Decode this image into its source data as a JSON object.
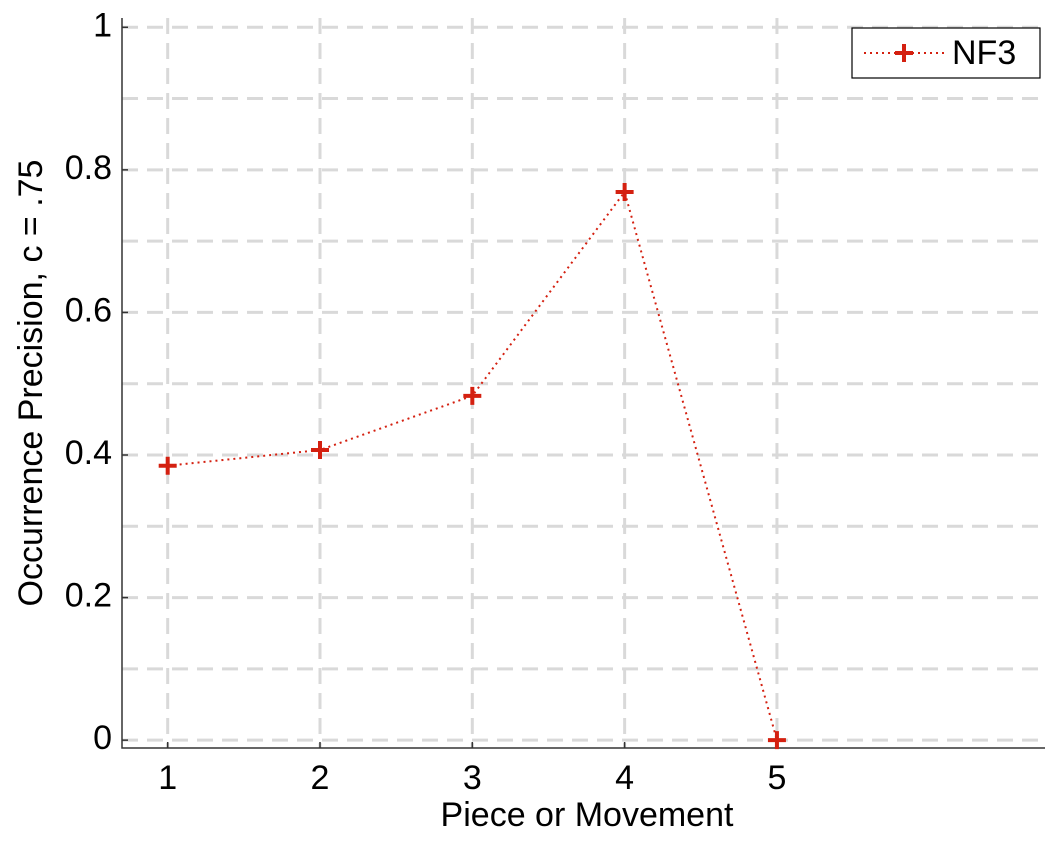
{
  "chart_data": {
    "type": "line",
    "xlabel": "Piece or Movement",
    "ylabel": "Occurrence Precision, c = .75",
    "x": [
      1,
      2,
      3,
      4,
      5
    ],
    "series": [
      {
        "name": "NF3",
        "color": "#d42010",
        "values": [
          0.385,
          0.407,
          0.483,
          0.769,
          0
        ]
      }
    ],
    "xlim": [
      0.7,
      6.76
    ],
    "xticks": [
      1,
      2,
      3,
      4,
      5
    ],
    "ylim": [
      -0.011,
      1.013
    ],
    "yticks": [
      0,
      0.2,
      0.4,
      0.6,
      0.8,
      1
    ],
    "minor_yticks": [
      0.1,
      0.3,
      0.5,
      0.7,
      0.9
    ],
    "grid": true,
    "legend": "upper right"
  }
}
